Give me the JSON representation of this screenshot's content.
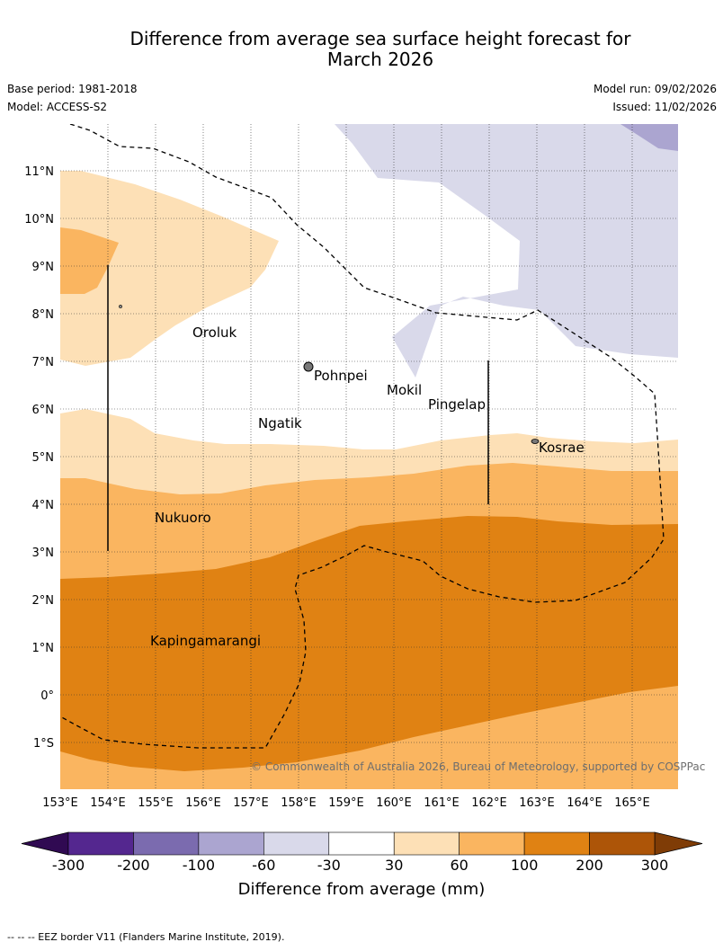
{
  "title_line1": "Difference from average sea surface height forecast for",
  "title_line2": "March 2026",
  "base_period": "Base period: 1981-2018",
  "model": "Model: ACCESS-S2",
  "model_run": "Model run: 09/02/2026",
  "issued": "Issued: 11/02/2026",
  "copyright": "© Commonwealth of Australia 2026, Bureau of Meteorology, supported by COSPPac",
  "lat_labels": [
    "11°N",
    "10°N",
    "9°N",
    "8°N",
    "7°N",
    "6°N",
    "5°N",
    "4°N",
    "3°N",
    "2°N",
    "1°N",
    "0°",
    "1°S"
  ],
  "lon_labels": [
    "153°E",
    "154°E",
    "155°E",
    "156°E",
    "157°E",
    "158°E",
    "159°E",
    "160°E",
    "161°E",
    "162°E",
    "163°E",
    "164°E",
    "165°E"
  ],
  "places": {
    "oroluk": "Oroluk",
    "pohnpei": "Pohnpei",
    "mokil": "Mokil",
    "pingelap": "Pingelap",
    "ngatik": "Ngatik",
    "kosrae": "Kosrae",
    "nukuoro": "Nukuoro",
    "kapingamarangi": "Kapingamarangi"
  },
  "colorbar": {
    "ticks": [
      "-300",
      "-200",
      "-100",
      "-60",
      "-30",
      "30",
      "60",
      "100",
      "200",
      "300"
    ],
    "colors": [
      "#54278f",
      "#7b6baf",
      "#aba5d0",
      "#d9d9ea",
      "#ffffff",
      "#fde0b6",
      "#fab560",
      "#e08213",
      "#ad5508"
    ],
    "under_color": "#300a52",
    "over_color": "#7f3c06",
    "label": "Difference from average (mm)"
  },
  "footer": "--  --  -- EEZ border V11 (Flanders Marine Institute, 2019)."
}
